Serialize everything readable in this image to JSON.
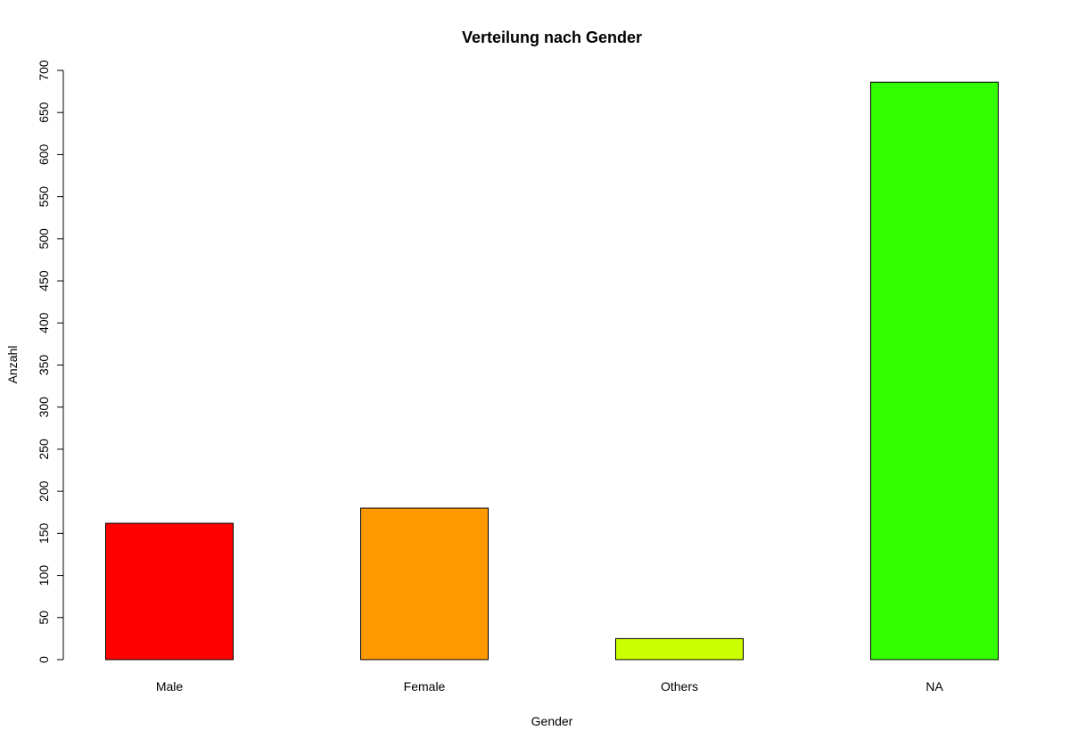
{
  "chart_data": {
    "type": "bar",
    "title": "Verteilung nach Gender",
    "xlabel": "Gender",
    "ylabel": "Anzahl",
    "categories": [
      "Male",
      "Female",
      "Others",
      "NA"
    ],
    "values": [
      162,
      180,
      25,
      686
    ],
    "colors": [
      "#FF0000",
      "#FF9900",
      "#CCFF00",
      "#33FF00"
    ],
    "ylim": [
      0,
      700
    ],
    "yticks": [
      "0",
      "50",
      "100",
      "150",
      "200",
      "250",
      "300",
      "350",
      "400",
      "450",
      "500",
      "550",
      "600",
      "650",
      "700"
    ],
    "grid": false,
    "legend": "none"
  }
}
